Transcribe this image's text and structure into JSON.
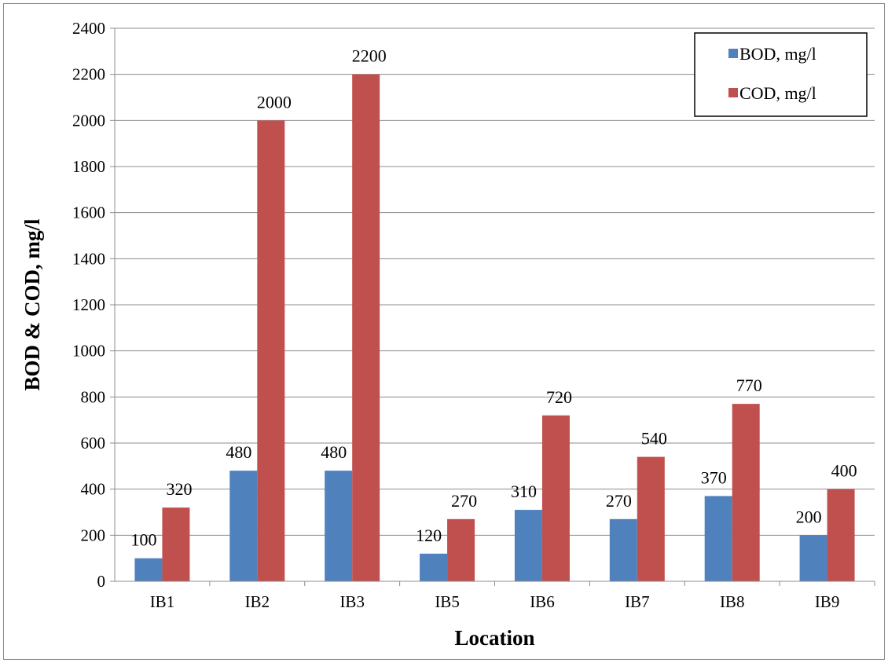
{
  "chart_data": {
    "type": "bar",
    "title": "",
    "xlabel": "Location",
    "ylabel": "BOD & COD, mg/l",
    "categories": [
      "IB1",
      "IB2",
      "IB3",
      "IB5",
      "IB6",
      "IB7",
      "IB8",
      "IB9"
    ],
    "series": [
      {
        "name": "BOD, mg/l",
        "color": "#4f81bd",
        "values": [
          100,
          480,
          480,
          120,
          310,
          270,
          370,
          200
        ]
      },
      {
        "name": "COD, mg/l",
        "color": "#c0504d",
        "values": [
          320,
          2000,
          2200,
          270,
          720,
          540,
          770,
          400
        ]
      }
    ],
    "ylim": [
      0,
      2400
    ],
    "yticks": [
      0,
      200,
      400,
      600,
      800,
      1000,
      1200,
      1400,
      1600,
      1800,
      2000,
      2200,
      2400
    ],
    "grid": true,
    "legend": "top-right",
    "data_labels": true
  }
}
